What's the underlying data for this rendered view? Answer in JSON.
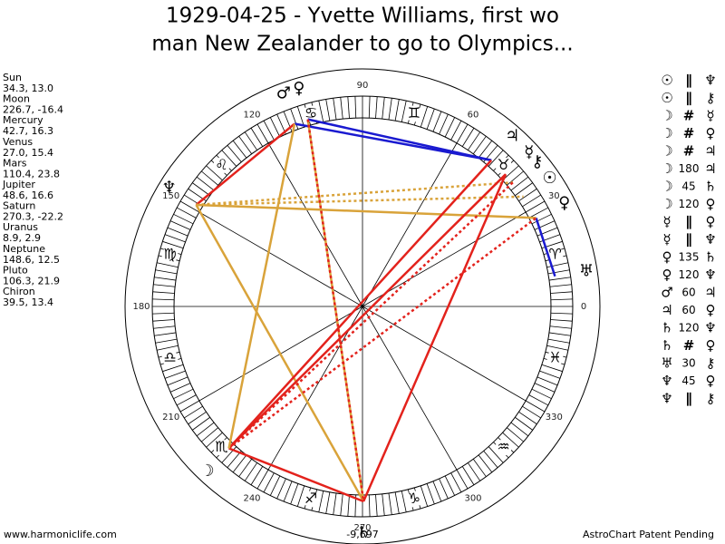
{
  "title": [
    "1929-04-25 - Yvette Williams, first wo",
    "man New Zealander to go to Olympics..."
  ],
  "planets": [
    {
      "name": "Sun",
      "glyph": "☉",
      "position": "34.3, 13.0",
      "longitude": 34.3
    },
    {
      "name": "Moon",
      "glyph": "☽",
      "position": "226.7, -16.4",
      "longitude": 226.7
    },
    {
      "name": "Mercury",
      "glyph": "☿",
      "position": "42.7, 16.3",
      "longitude": 42.7
    },
    {
      "name": "Venus",
      "glyph": "♀",
      "position": "27.0, 15.4",
      "longitude": 27.0
    },
    {
      "name": "Mars",
      "glyph": "♂",
      "position": "110.4, 23.8",
      "longitude": 110.4
    },
    {
      "name": "Jupiter",
      "glyph": "♃",
      "position": "48.6, 16.6",
      "longitude": 48.6
    },
    {
      "name": "Saturn",
      "glyph": "♄",
      "position": "270.3, -22.2",
      "longitude": 270.3
    },
    {
      "name": "Uranus",
      "glyph": "♅",
      "position": "8.9, 2.9",
      "longitude": 8.9
    },
    {
      "name": "Neptune",
      "glyph": "♆",
      "position": "148.6, 12.5",
      "longitude": 148.6
    },
    {
      "name": "Pluto",
      "glyph": "♀",
      "position": "106.3, 21.9",
      "longitude": 106.3
    },
    {
      "name": "Chiron",
      "glyph": "⚷",
      "position": "39.5, 13.4",
      "longitude": 39.5
    }
  ],
  "aspects": [
    [
      "☉",
      "∥",
      "♆"
    ],
    [
      "☉",
      "∥",
      "⚷"
    ],
    [
      "☽",
      "#",
      "☿"
    ],
    [
      "☽",
      "#",
      "♀"
    ],
    [
      "☽",
      "#",
      "♃"
    ],
    [
      "☽",
      "180",
      "♃"
    ],
    [
      "☽",
      "45",
      "♄"
    ],
    [
      "☽",
      "120",
      "♀"
    ],
    [
      "☿",
      "∥",
      "♀"
    ],
    [
      "☿",
      "∥",
      "♆"
    ],
    [
      "♀",
      "135",
      "♄"
    ],
    [
      "♀",
      "120",
      "♆"
    ],
    [
      "♂",
      "60",
      "♃"
    ],
    [
      "♃",
      "60",
      "♀"
    ],
    [
      "♄",
      "120",
      "♆"
    ],
    [
      "♄",
      "#",
      "♀"
    ],
    [
      "♅",
      "30",
      "⚷"
    ],
    [
      "♆",
      "45",
      "♀"
    ],
    [
      "♆",
      "∥",
      "⚷"
    ]
  ],
  "aspect_lines": [
    {
      "from": 8,
      "to": 4,
      "color": "#e3221c",
      "style": "solid"
    },
    {
      "from": 4,
      "to": 5,
      "color": "#1a1ad0",
      "style": "solid"
    },
    {
      "from": 9,
      "to": 5,
      "color": "#1a1ad0",
      "style": "solid"
    },
    {
      "from": 3,
      "to": 7,
      "color": "#1a1ad0",
      "style": "solid"
    },
    {
      "from": 9,
      "to": 6,
      "color": "#d9a33a",
      "style": "solid"
    },
    {
      "from": 8,
      "to": 6,
      "color": "#d9a33a",
      "style": "solid"
    },
    {
      "from": 8,
      "to": 3,
      "color": "#d9a33a",
      "style": "solid"
    },
    {
      "from": 8,
      "to": 0,
      "color": "#d9a33a",
      "style": "dotted"
    },
    {
      "from": 8,
      "to": 10,
      "color": "#d9a33a",
      "style": "dotted"
    },
    {
      "from": 1,
      "to": 6,
      "color": "#e3221c",
      "style": "solid"
    },
    {
      "from": 6,
      "to": 2,
      "color": "#e3221c",
      "style": "solid"
    },
    {
      "from": 1,
      "to": 5,
      "color": "#e3221c",
      "style": "solid"
    },
    {
      "from": 1,
      "to": 2,
      "color": "#e3221c",
      "style": "solid"
    },
    {
      "from": 1,
      "to": 3,
      "color": "#e3221c",
      "style": "dotted"
    },
    {
      "from": 1,
      "to": 10,
      "color": "#e3221c",
      "style": "dotted"
    },
    {
      "from": 9,
      "to": 6,
      "color": "#e3221c",
      "style": "dotted"
    },
    {
      "from": 4,
      "to": 1,
      "color": "#d9a33a",
      "style": "solid"
    }
  ],
  "signs": [
    "♈",
    "♉",
    "♊",
    "♋",
    "♌",
    "♍",
    "♎",
    "♏",
    "♐",
    "♑",
    "♒",
    "♓"
  ],
  "degree_labels": [
    0,
    30,
    60,
    90,
    120,
    150,
    180,
    210,
    240,
    270,
    300,
    330
  ],
  "bottom_value": "-9,697",
  "footer": {
    "left": "www.harmoniclife.com",
    "right": "AstroChart Patent Pending"
  }
}
